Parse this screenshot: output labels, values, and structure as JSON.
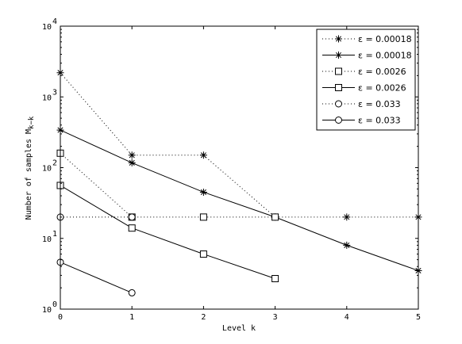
{
  "chart_data": {
    "type": "line",
    "title": "",
    "xlabel": "Level k",
    "ylabel_main": "Number of samples M",
    "ylabel_sub": "k−k",
    "xlim": [
      0,
      5
    ],
    "ylim_log10": [
      0,
      4
    ],
    "yscale": "log",
    "xticks": [
      0,
      1,
      2,
      3,
      4,
      5
    ],
    "yticks": [
      0,
      1,
      2,
      3,
      4
    ],
    "ytick_base": "10",
    "grid": false,
    "legend_position": "top-right",
    "series": [
      {
        "name": "ε = 0.00018",
        "style": "dotted",
        "marker": "star",
        "x": [
          0,
          1,
          2,
          3,
          4,
          5
        ],
        "y": [
          2200,
          150,
          150,
          20,
          20,
          20
        ]
      },
      {
        "name": "ε = 0.00018",
        "style": "solid",
        "marker": "star",
        "x": [
          0,
          1,
          2,
          3,
          4,
          5
        ],
        "y": [
          340,
          117,
          45,
          20,
          8,
          3.5
        ]
      },
      {
        "name": "ε = 0.0026",
        "style": "dotted",
        "marker": "square",
        "x": [
          0,
          1,
          2,
          3
        ],
        "y": [
          160,
          20,
          20,
          20
        ]
      },
      {
        "name": "ε = 0.0026",
        "style": "solid",
        "marker": "square",
        "x": [
          0,
          1,
          2,
          3
        ],
        "y": [
          56,
          14,
          6,
          2.7
        ]
      },
      {
        "name": "ε = 0.033",
        "style": "dotted",
        "marker": "circle",
        "x": [
          0,
          1
        ],
        "y": [
          20,
          20
        ]
      },
      {
        "name": "ε = 0.033",
        "style": "solid",
        "marker": "circle",
        "x": [
          0,
          1
        ],
        "y": [
          4.6,
          1.7
        ]
      }
    ]
  }
}
